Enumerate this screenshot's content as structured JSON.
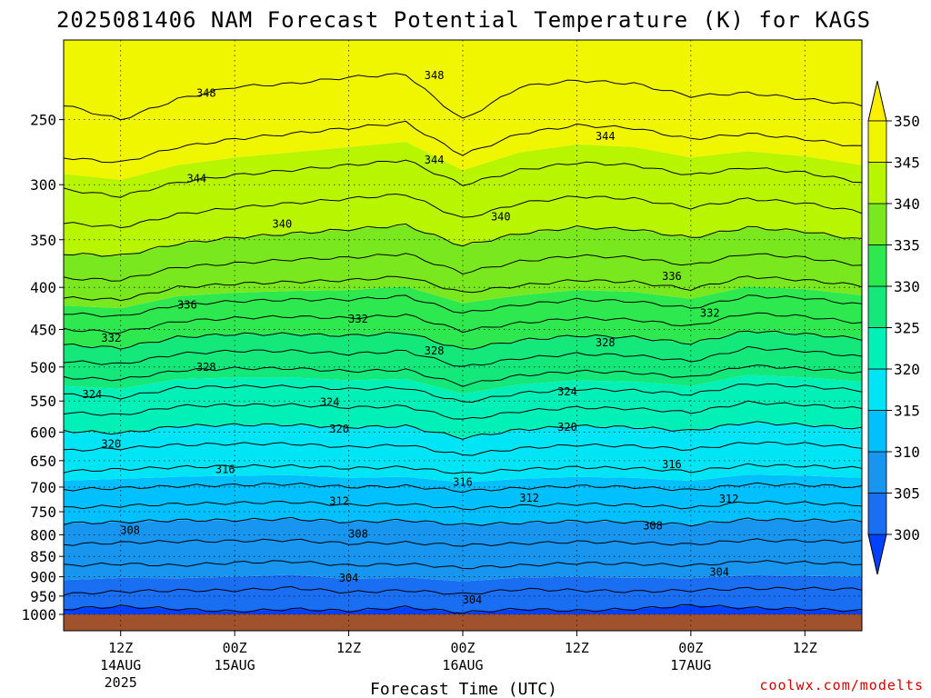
{
  "chart_data": {
    "type": "heatmap",
    "title": "2025081406 NAM Forecast Potential Temperature (K) for KAGS",
    "xlabel": "Forecast Time (UTC)",
    "ylabel": "",
    "credit": "coolwx.com/modelts",
    "y_axis": {
      "scale": "log-pressure",
      "reversed": true,
      "range": [
        1000,
        200
      ],
      "ticks": [
        "250",
        "300",
        "350",
        "400",
        "450",
        "500",
        "550",
        "600",
        "650",
        "700",
        "750",
        "800",
        "850",
        "900",
        "950",
        "1000"
      ],
      "grid": "dotted"
    },
    "x_axis": {
      "range_hours": [
        0,
        84
      ],
      "ticks": [
        {
          "label": "12Z",
          "date": "14AUG",
          "year": "2025"
        },
        {
          "label": "00Z",
          "date": "15AUG",
          "year": ""
        },
        {
          "label": "12Z",
          "date": "",
          "year": ""
        },
        {
          "label": "00Z",
          "date": "16AUG",
          "year": ""
        },
        {
          "label": "12Z",
          "date": "",
          "year": ""
        },
        {
          "label": "00Z",
          "date": "17AUG",
          "year": ""
        },
        {
          "label": "12Z",
          "date": "",
          "year": ""
        }
      ],
      "grid": "dotted"
    },
    "colorbar": {
      "levels": [
        300,
        305,
        310,
        315,
        320,
        325,
        330,
        335,
        340,
        345,
        350
      ],
      "labels": [
        "300",
        "305",
        "310",
        "315",
        "320",
        "325",
        "330",
        "335",
        "340",
        "345",
        "350"
      ],
      "colors": [
        "#0040ff",
        "#1a6ef2",
        "#1795ef",
        "#00c0ff",
        "#00e5f5",
        "#00f0b8",
        "#14e87a",
        "#2ee84f",
        "#7ae81e",
        "#b8f500",
        "#f0f500",
        "#ffee00"
      ],
      "extend": "both"
    },
    "ground_color": "#a0522d",
    "isentropes": [
      {
        "theta": 300,
        "p": [
          1000,
          1000,
          1000,
          1000,
          1000,
          1000,
          1000,
          1000,
          1000,
          1000,
          1000,
          1000,
          1000,
          1000,
          1000
        ]
      },
      {
        "theta": 302,
        "p": [
          985,
          978,
          985,
          992,
          985,
          990,
          980,
          995,
          985,
          990,
          985,
          975,
          982,
          985,
          990
        ]
      },
      {
        "theta": 304,
        "p": [
          945,
          938,
          935,
          935,
          928,
          940,
          935,
          945,
          932,
          935,
          938,
          935,
          930,
          930,
          932
        ]
      },
      {
        "theta": 306,
        "p": [
          872,
          868,
          872,
          865,
          862,
          872,
          868,
          878,
          872,
          866,
          868,
          872,
          862,
          865,
          868
        ]
      },
      {
        "theta": 308,
        "p": [
          822,
          818,
          815,
          814,
          812,
          820,
          818,
          824,
          820,
          816,
          818,
          822,
          812,
          814,
          816
        ]
      },
      {
        "theta": 310,
        "p": [
          775,
          772,
          768,
          768,
          765,
          772,
          768,
          778,
          774,
          770,
          772,
          778,
          766,
          768,
          770
        ]
      },
      {
        "theta": 312,
        "p": [
          742,
          738,
          734,
          732,
          730,
          736,
          734,
          744,
          738,
          734,
          736,
          742,
          730,
          732,
          736
        ]
      },
      {
        "theta": 314,
        "p": [
          705,
          702,
          698,
          696,
          694,
          700,
          698,
          708,
          702,
          698,
          700,
          706,
          694,
          696,
          700
        ]
      },
      {
        "theta": 316,
        "p": [
          670,
          666,
          662,
          660,
          660,
          664,
          662,
          674,
          666,
          662,
          664,
          670,
          658,
          660,
          664
        ]
      },
      {
        "theta": 318,
        "p": [
          632,
          628,
          622,
          620,
          620,
          626,
          622,
          640,
          628,
          622,
          624,
          630,
          618,
          620,
          626
        ]
      },
      {
        "theta": 320,
        "p": [
          598,
          602,
          590,
          588,
          588,
          592,
          590,
          610,
          596,
          590,
          592,
          598,
          584,
          588,
          594
        ]
      },
      {
        "theta": 322,
        "p": [
          568,
          572,
          558,
          556,
          556,
          560,
          558,
          580,
          566,
          560,
          562,
          568,
          552,
          556,
          562
        ]
      },
      {
        "theta": 324,
        "p": [
          540,
          545,
          530,
          528,
          528,
          532,
          530,
          552,
          538,
          532,
          534,
          540,
          524,
          528,
          534
        ]
      },
      {
        "theta": 326,
        "p": [
          515,
          518,
          505,
          502,
          502,
          506,
          504,
          526,
          512,
          506,
          508,
          515,
          498,
          502,
          508
        ]
      },
      {
        "theta": 328,
        "p": [
          492,
          496,
          482,
          478,
          478,
          482,
          478,
          500,
          488,
          482,
          484,
          492,
          474,
          478,
          486
        ]
      },
      {
        "theta": 330,
        "p": [
          470,
          474,
          460,
          456,
          456,
          458,
          454,
          476,
          464,
          458,
          460,
          468,
          452,
          456,
          462
        ]
      },
      {
        "theta": 332,
        "p": [
          450,
          454,
          440,
          436,
          434,
          436,
          432,
          452,
          442,
          436,
          438,
          446,
          430,
          434,
          442
        ]
      },
      {
        "theta": 334,
        "p": [
          430,
          434,
          420,
          416,
          414,
          414,
          410,
          430,
          420,
          414,
          416,
          424,
          410,
          412,
          420
        ]
      },
      {
        "theta": 336,
        "p": [
          412,
          414,
          400,
          396,
          394,
          392,
          388,
          406,
          398,
          392,
          394,
          402,
          388,
          392,
          398
        ]
      },
      {
        "theta": 338,
        "p": [
          390,
          392,
          378,
          374,
          370,
          368,
          364,
          384,
          372,
          366,
          368,
          376,
          364,
          368,
          376
        ]
      },
      {
        "theta": 340,
        "p": [
          364,
          366,
          354,
          348,
          344,
          340,
          336,
          356,
          344,
          338,
          340,
          348,
          338,
          342,
          350
        ]
      },
      {
        "theta": 342,
        "p": [
          334,
          338,
          326,
          320,
          316,
          312,
          308,
          330,
          316,
          310,
          312,
          320,
          312,
          316,
          324
        ]
      },
      {
        "theta": 344,
        "p": [
          304,
          310,
          298,
          292,
          288,
          284,
          280,
          300,
          288,
          282,
          284,
          292,
          286,
          290,
          298
        ]
      },
      {
        "theta": 346,
        "p": [
          278,
          282,
          270,
          264,
          260,
          256,
          252,
          276,
          260,
          254,
          256,
          264,
          260,
          264,
          270
        ]
      },
      {
        "theta": 348,
        "p": [
          240,
          250,
          236,
          228,
          226,
          222,
          220,
          250,
          228,
          224,
          226,
          234,
          232,
          236,
          240
        ]
      }
    ],
    "isentrope_times_hours": [
      0,
      6,
      12,
      18,
      24,
      30,
      36,
      42,
      48,
      54,
      60,
      66,
      72,
      78,
      84
    ],
    "contour_labels": [
      {
        "text": "348",
        "t": 15,
        "p": 232
      },
      {
        "text": "348",
        "t": 39,
        "p": 221
      },
      {
        "text": "344",
        "t": 14,
        "p": 295
      },
      {
        "text": "344",
        "t": 39,
        "p": 280
      },
      {
        "text": "344",
        "t": 57,
        "p": 262
      },
      {
        "text": "340",
        "t": 23,
        "p": 335
      },
      {
        "text": "340",
        "t": 46,
        "p": 328
      },
      {
        "text": "336",
        "t": 13,
        "p": 420
      },
      {
        "text": "336",
        "t": 64,
        "p": 388
      },
      {
        "text": "332",
        "t": 5,
        "p": 461
      },
      {
        "text": "332",
        "t": 31,
        "p": 437
      },
      {
        "text": "332",
        "t": 68,
        "p": 430
      },
      {
        "text": "328",
        "t": 15,
        "p": 500
      },
      {
        "text": "328",
        "t": 39,
        "p": 478
      },
      {
        "text": "328",
        "t": 57,
        "p": 467
      },
      {
        "text": "324",
        "t": 3,
        "p": 540
      },
      {
        "text": "324",
        "t": 28,
        "p": 552
      },
      {
        "text": "324",
        "t": 53,
        "p": 536
      },
      {
        "text": "320",
        "t": 5,
        "p": 620
      },
      {
        "text": "320",
        "t": 29,
        "p": 595
      },
      {
        "text": "320",
        "t": 53,
        "p": 592
      },
      {
        "text": "316",
        "t": 17,
        "p": 666
      },
      {
        "text": "316",
        "t": 42,
        "p": 690
      },
      {
        "text": "316",
        "t": 64,
        "p": 657
      },
      {
        "text": "312",
        "t": 29,
        "p": 728
      },
      {
        "text": "312",
        "t": 49,
        "p": 722
      },
      {
        "text": "312",
        "t": 70,
        "p": 724
      },
      {
        "text": "308",
        "t": 7,
        "p": 790
      },
      {
        "text": "308",
        "t": 31,
        "p": 798
      },
      {
        "text": "308",
        "t": 62,
        "p": 780
      },
      {
        "text": "304",
        "t": 30,
        "p": 903
      },
      {
        "text": "304",
        "t": 43,
        "p": 960
      },
      {
        "text": "304",
        "t": 69,
        "p": 888
      }
    ]
  }
}
